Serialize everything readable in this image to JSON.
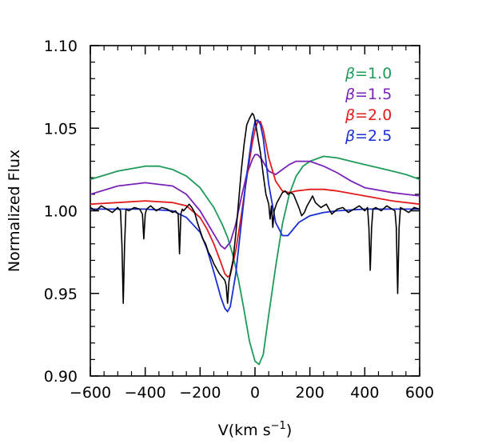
{
  "chart_data": {
    "type": "line",
    "title": "",
    "xlabel": "V(km s",
    "xlabel_sup": "−1",
    "xlabel_close": ")",
    "ylabel": "Normalized Flux",
    "xlim": [
      -600,
      600
    ],
    "ylim": [
      0.9,
      1.1
    ],
    "x_ticks": [
      -600,
      -400,
      -200,
      0,
      200,
      400,
      600
    ],
    "x_tick_labels": [
      "−600",
      "−400",
      "−200",
      "0",
      "200",
      "400",
      "600"
    ],
    "y_ticks": [
      0.9,
      0.95,
      1.0,
      1.05,
      1.1
    ],
    "y_tick_labels": [
      "0.90",
      "0.95",
      "1.00",
      "1.05",
      "1.10"
    ],
    "grid": false,
    "legend_position": "top-right",
    "series": [
      {
        "name": "β=1.0",
        "symbol": "β",
        "label_value": "=1.0",
        "color": "#1f9a5a",
        "x": [
          -600,
          -500,
          -400,
          -350,
          -300,
          -250,
          -200,
          -150,
          -120,
          -100,
          -80,
          -60,
          -40,
          -20,
          0,
          15,
          30,
          50,
          75,
          100,
          125,
          150,
          175,
          200,
          250,
          300,
          350,
          400,
          450,
          500,
          550,
          600
        ],
        "y": [
          1.019,
          1.024,
          1.027,
          1.027,
          1.025,
          1.021,
          1.014,
          1.002,
          0.992,
          0.984,
          0.973,
          0.958,
          0.94,
          0.921,
          0.909,
          0.907,
          0.913,
          0.937,
          0.966,
          0.992,
          1.01,
          1.021,
          1.027,
          1.03,
          1.033,
          1.032,
          1.03,
          1.028,
          1.026,
          1.024,
          1.022,
          1.019
        ]
      },
      {
        "name": "β=1.5",
        "symbol": "β",
        "label_value": "=1.5",
        "color": "#7a22b8",
        "x": [
          -600,
          -500,
          -400,
          -300,
          -250,
          -200,
          -175,
          -150,
          -125,
          -110,
          -90,
          -70,
          -50,
          -30,
          -10,
          0,
          10,
          25,
          50,
          75,
          100,
          125,
          150,
          200,
          250,
          300,
          350,
          400,
          500,
          600
        ],
        "y": [
          1.01,
          1.015,
          1.017,
          1.015,
          1.01,
          1.0,
          0.993,
          0.986,
          0.979,
          0.977,
          0.981,
          0.992,
          1.008,
          1.022,
          1.031,
          1.034,
          1.034,
          1.031,
          1.024,
          1.022,
          1.025,
          1.028,
          1.03,
          1.03,
          1.027,
          1.023,
          1.018,
          1.014,
          1.011,
          1.009
        ]
      },
      {
        "name": "β=2.0",
        "symbol": "β",
        "label_value": "=2.0",
        "color": "#e21b1b",
        "x": [
          -600,
          -500,
          -400,
          -300,
          -250,
          -200,
          -175,
          -150,
          -125,
          -110,
          -100,
          -90,
          -70,
          -50,
          -30,
          -10,
          0,
          10,
          20,
          30,
          50,
          75,
          100,
          125,
          150,
          200,
          250,
          300,
          400,
          500,
          600
        ],
        "y": [
          1.004,
          1.005,
          1.006,
          1.005,
          1.003,
          0.996,
          0.989,
          0.98,
          0.969,
          0.962,
          0.96,
          0.961,
          0.976,
          0.997,
          1.02,
          1.041,
          1.049,
          1.054,
          1.054,
          1.049,
          1.032,
          1.018,
          1.012,
          1.011,
          1.012,
          1.013,
          1.013,
          1.012,
          1.009,
          1.006,
          1.004
        ]
      },
      {
        "name": "β=2.5",
        "symbol": "β",
        "label_value": "=2.5",
        "color": "#1a2ed6",
        "x": [
          -600,
          -500,
          -400,
          -300,
          -250,
          -200,
          -175,
          -150,
          -125,
          -110,
          -100,
          -90,
          -70,
          -50,
          -30,
          -10,
          0,
          10,
          20,
          30,
          50,
          75,
          100,
          120,
          140,
          160,
          200,
          250,
          300,
          400,
          500,
          600
        ],
        "y": [
          1.001,
          1.001,
          1.001,
          1.0,
          0.996,
          0.987,
          0.977,
          0.963,
          0.948,
          0.941,
          0.939,
          0.942,
          0.962,
          0.992,
          1.022,
          1.046,
          1.054,
          1.055,
          1.052,
          1.044,
          1.016,
          0.993,
          0.985,
          0.985,
          0.989,
          0.993,
          0.997,
          0.999,
          1.0,
          1.001,
          1.001,
          1.001
        ]
      },
      {
        "name": "",
        "color": "#000000",
        "x": [
          -600,
          -580,
          -560,
          -540,
          -520,
          -500,
          -490,
          -485,
          -480,
          -475,
          -470,
          -460,
          -440,
          -420,
          -410,
          -405,
          -400,
          -395,
          -380,
          -360,
          -340,
          -320,
          -300,
          -290,
          -280,
          -275,
          -270,
          -265,
          -260,
          -250,
          -240,
          -230,
          -220,
          -210,
          -200,
          -190,
          -180,
          -170,
          -160,
          -150,
          -140,
          -130,
          -120,
          -110,
          -105,
          -100,
          -95,
          -90,
          -80,
          -70,
          -60,
          -50,
          -40,
          -30,
          -20,
          -10,
          -5,
          0,
          5,
          10,
          15,
          20,
          30,
          40,
          50,
          55,
          60,
          65,
          70,
          80,
          90,
          100,
          110,
          120,
          130,
          140,
          150,
          160,
          170,
          180,
          190,
          200,
          210,
          220,
          240,
          260,
          280,
          300,
          320,
          340,
          360,
          380,
          400,
          410,
          415,
          420,
          425,
          430,
          440,
          460,
          480,
          500,
          510,
          515,
          520,
          525,
          530,
          540,
          560,
          580,
          600
        ],
        "y": [
          1.002,
          1.0,
          1.003,
          1.001,
          0.999,
          1.002,
          1.0,
          0.98,
          0.944,
          0.98,
          1.001,
          1.0,
          1.002,
          1.001,
          0.998,
          0.983,
          0.998,
          1.001,
          1.003,
          1.0,
          1.002,
          1.001,
          0.999,
          1.0,
          0.998,
          0.974,
          0.998,
          1.001,
          1.0,
          1.002,
          1.004,
          1.002,
          0.999,
          0.993,
          0.988,
          0.983,
          0.98,
          0.975,
          0.972,
          0.968,
          0.965,
          0.962,
          0.96,
          0.958,
          0.955,
          0.944,
          0.957,
          0.962,
          0.97,
          0.986,
          1.005,
          1.024,
          1.04,
          1.052,
          1.056,
          1.059,
          1.058,
          1.055,
          1.05,
          1.045,
          1.04,
          1.035,
          1.022,
          1.01,
          1.004,
          0.995,
          1.003,
          0.99,
          1.0,
          1.005,
          1.008,
          1.011,
          1.012,
          1.01,
          1.011,
          1.01,
          1.006,
          1.002,
          0.997,
          0.999,
          1.003,
          1.006,
          1.009,
          1.005,
          1.002,
          1.004,
          0.998,
          1.001,
          1.002,
          0.999,
          1.001,
          1.003,
          1.0,
          1.002,
          0.99,
          0.964,
          0.99,
          1.001,
          1.002,
          1.0,
          1.003,
          1.001,
          1.0,
          0.99,
          0.95,
          0.99,
          1.002,
          1.001,
          0.999,
          1.002,
          1.001
        ]
      }
    ]
  }
}
